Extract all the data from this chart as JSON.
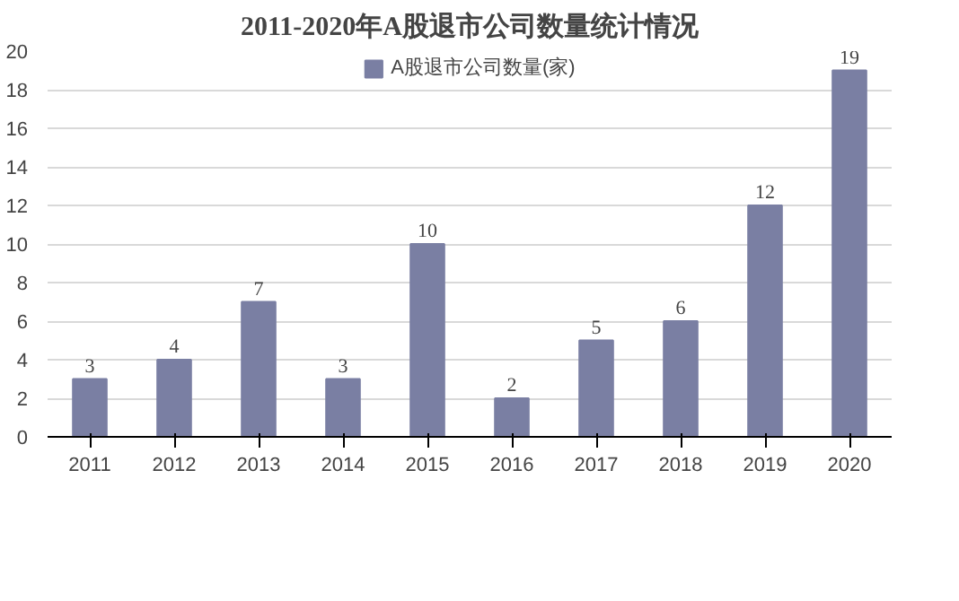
{
  "chart_data": {
    "type": "bar",
    "title": "2011-2020年A股退市公司数量统计情况",
    "categories": [
      "2011",
      "2012",
      "2013",
      "2014",
      "2015",
      "2016",
      "2017",
      "2018",
      "2019",
      "2020"
    ],
    "series": [
      {
        "name": "A股退市公司数量(家)",
        "color": "#7a7fa3",
        "values": [
          3,
          4,
          7,
          3,
          10,
          2,
          5,
          6,
          12,
          19
        ]
      }
    ],
    "ylim": [
      0,
      20
    ],
    "yticks": [
      0,
      2,
      4,
      6,
      8,
      10,
      12,
      14,
      16,
      18,
      20
    ],
    "grid": "y",
    "legend": "top",
    "data_labels": true
  }
}
